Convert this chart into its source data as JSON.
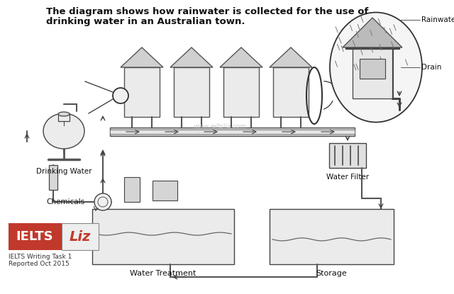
{
  "title_line1": "The diagram shows how rainwater is collected for the use of",
  "title_line2": "drinking water in an Australian town.",
  "title_fontsize": 9.5,
  "bg_color": "#ffffff",
  "label_rainwater": "Rainwater",
  "label_drain": "Drain",
  "label_drinking_water": "Drinking Water",
  "label_water_filter": "Water Filter",
  "label_chemicals": "Chemicals",
  "label_water_treatment": "Water Treatment",
  "label_storage": "Storage",
  "label_ielts": "IELTS",
  "label_liz": "Liz",
  "label_task": "IELTS Writing Task 1\nReported Oct 2015",
  "watermark": "www.ieltsliz.com",
  "draw_color": "#444444",
  "pipe_color": "#888888"
}
